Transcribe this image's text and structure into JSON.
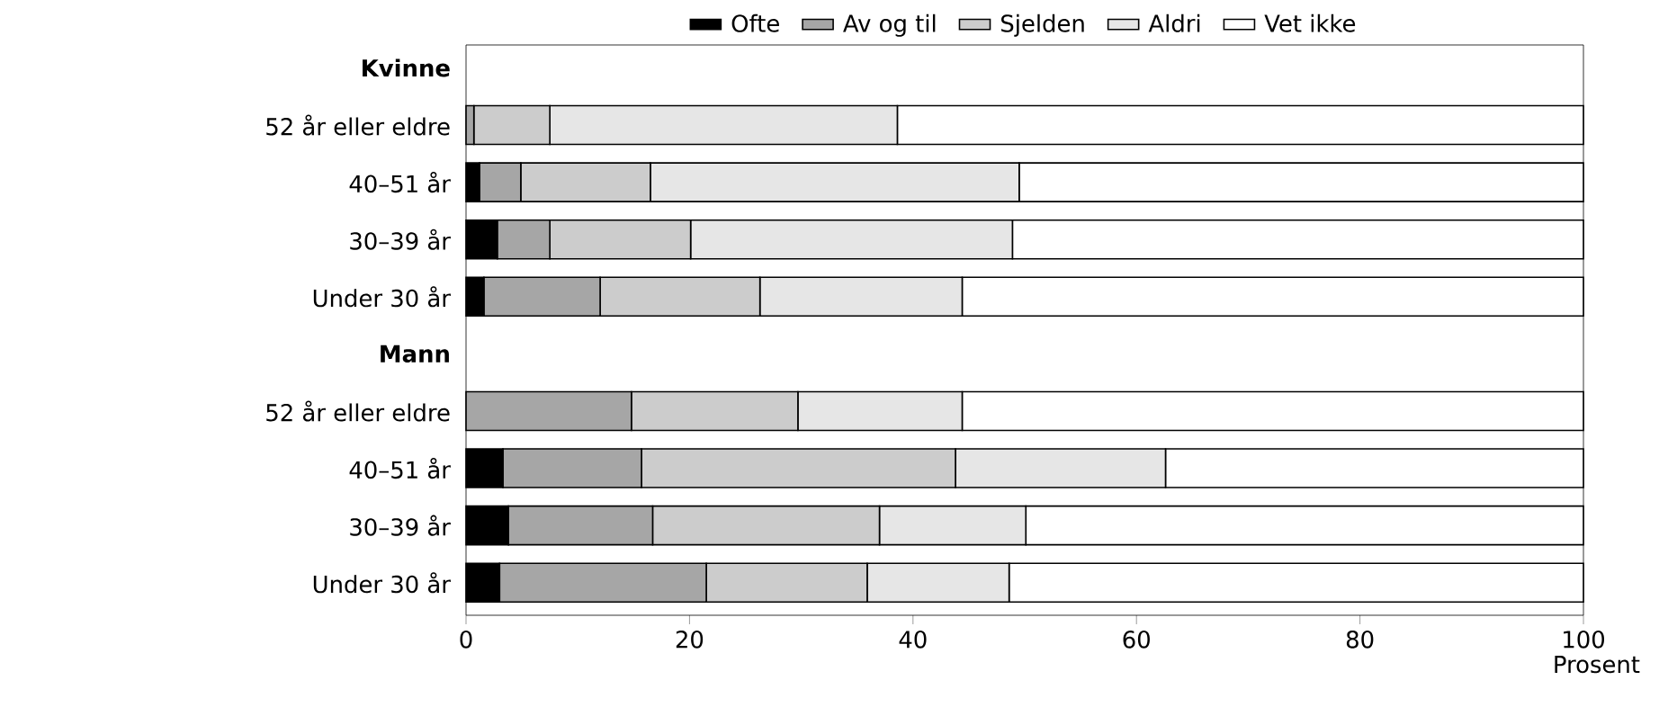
{
  "chart_data": {
    "type": "bar",
    "orientation": "horizontal",
    "stacked": true,
    "xlabel": "Prosent",
    "categories": [
      "Kvinne",
      "52 år eller eldre",
      "40–51 år",
      "30–39 år",
      "Under 30 år",
      "Mann",
      "52 år eller eldre",
      "40–51 år",
      "30–39 år",
      "Under 30 år"
    ],
    "series": [
      {
        "name": "Ofte",
        "color": "#000000",
        "values": [
          null,
          0,
          1.2,
          2.8,
          1.6,
          null,
          0,
          3.3,
          3.8,
          3.0
        ]
      },
      {
        "name": "Av og til",
        "color": "#a6a6a6",
        "values": [
          null,
          0.7,
          3.7,
          4.7,
          10.4,
          null,
          14.8,
          12.4,
          12.9,
          18.5
        ]
      },
      {
        "name": "Sjelden",
        "color": "#cccccc",
        "values": [
          null,
          6.8,
          11.6,
          12.6,
          14.3,
          null,
          14.9,
          28.1,
          20.3,
          14.4
        ]
      },
      {
        "name": "Aldri",
        "color": "#e6e6e6",
        "values": [
          null,
          31.1,
          33.0,
          28.8,
          18.1,
          null,
          14.7,
          18.8,
          13.1,
          12.7
        ]
      },
      {
        "name": "Vet ikke",
        "color": "#ffffff",
        "values": [
          null,
          61.4,
          50.5,
          51.1,
          55.6,
          null,
          55.6,
          37.4,
          49.9,
          51.4
        ]
      }
    ],
    "xlim": [
      0,
      100
    ],
    "xticks": [
      0,
      20,
      40,
      60,
      80,
      100
    ],
    "grid": false,
    "legend": "top"
  }
}
